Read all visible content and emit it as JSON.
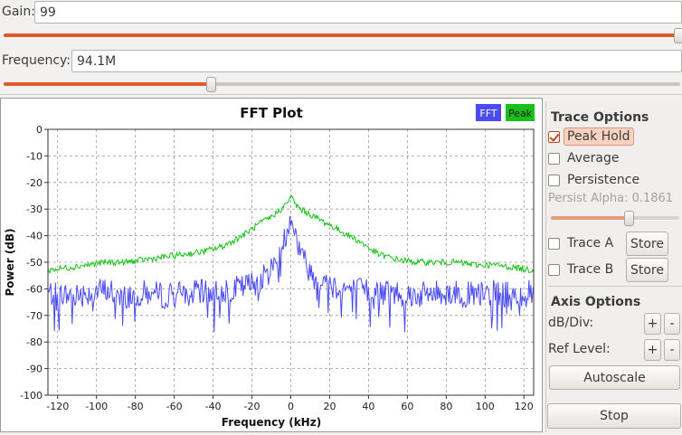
{
  "controls": {
    "gain": {
      "label": "Gain:",
      "value": "99",
      "slider_fraction": 1.0
    },
    "frequency": {
      "label": "Frequency:",
      "value": "94.1M",
      "slider_fraction": 0.31
    }
  },
  "plot": {
    "title": "FFT Plot",
    "legend": [
      {
        "name": "FFT",
        "color": "#4b4bf0"
      },
      {
        "name": "Peak",
        "color": "#19c019"
      }
    ]
  },
  "chart_data": {
    "type": "line",
    "title": "FFT Plot",
    "xlabel": "Frequency (kHz)",
    "ylabel": "Power (dB)",
    "xlim": [
      -125,
      125
    ],
    "ylim": [
      -100,
      0
    ],
    "x_ticks": [
      -120,
      -100,
      -80,
      -60,
      -40,
      -20,
      0,
      20,
      40,
      60,
      80,
      100,
      120
    ],
    "y_ticks": [
      0,
      -10,
      -20,
      -30,
      -40,
      -50,
      -60,
      -70,
      -80,
      -90,
      -100
    ],
    "grid": true,
    "legend_position": "top-right",
    "series": [
      {
        "name": "FFT",
        "color": "#4b4bf0",
        "x": [
          -125,
          -115,
          -105,
          -95,
          -85,
          -75,
          -65,
          -55,
          -45,
          -35,
          -25,
          -15,
          -10,
          -5,
          -2,
          0,
          2,
          5,
          10,
          15,
          25,
          35,
          45,
          55,
          65,
          75,
          85,
          95,
          105,
          115,
          125
        ],
        "values": [
          -61,
          -62,
          -61,
          -60,
          -62,
          -61,
          -62,
          -61,
          -61,
          -60,
          -59,
          -56,
          -52,
          -45,
          -38,
          -31,
          -38,
          -46,
          -53,
          -57,
          -59,
          -60,
          -61,
          -61,
          -62,
          -61,
          -61,
          -62,
          -61,
          -62,
          -61
        ]
      },
      {
        "name": "Peak",
        "color": "#19c019",
        "x": [
          -125,
          -115,
          -105,
          -95,
          -85,
          -75,
          -65,
          -55,
          -45,
          -35,
          -25,
          -15,
          -10,
          -5,
          -2,
          0,
          2,
          5,
          10,
          15,
          25,
          35,
          45,
          55,
          65,
          75,
          85,
          95,
          105,
          115,
          125
        ],
        "values": [
          -53,
          -52,
          -51,
          -50,
          -50,
          -49,
          -48,
          -47,
          -46,
          -44,
          -40,
          -35,
          -33,
          -30,
          -28,
          -25,
          -28,
          -30,
          -32,
          -34,
          -38,
          -42,
          -47,
          -49,
          -50,
          -50,
          -50,
          -51,
          -51,
          -52,
          -53
        ]
      }
    ]
  },
  "trace_options": {
    "title": "Trace Options",
    "peak_hold": {
      "label": "Peak Hold",
      "checked": true
    },
    "average": {
      "label": "Average",
      "checked": false
    },
    "persistence": {
      "label": "Persistence",
      "checked": false
    },
    "persist_alpha": {
      "label": "Persist Alpha: 0.1861",
      "value": 0.1861
    },
    "trace_a": {
      "label": "Trace A",
      "button": "Store"
    },
    "trace_b": {
      "label": "Trace B",
      "button": "Store"
    }
  },
  "axis_options": {
    "title": "Axis Options",
    "db_div_label": "dB/Div:",
    "ref_level_label": "Ref Level:",
    "plus": "+",
    "minus": "-",
    "autoscale": "Autoscale",
    "stop": "Stop"
  }
}
